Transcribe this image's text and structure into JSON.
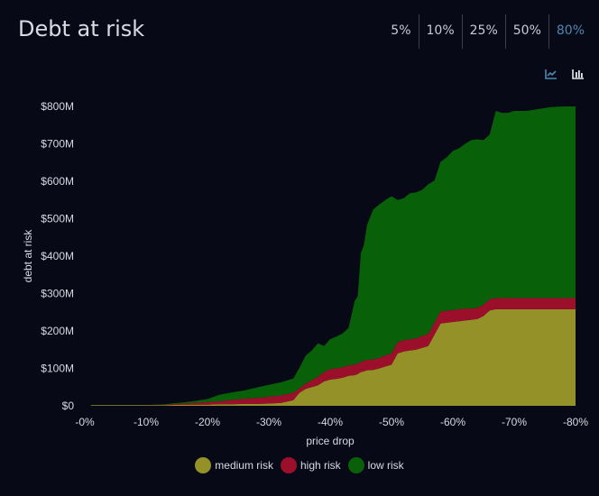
{
  "header": {
    "title": "Debt at risk"
  },
  "tabs": [
    {
      "label": "5%",
      "active": false
    },
    {
      "label": "10%",
      "active": false
    },
    {
      "label": "25%",
      "active": false
    },
    {
      "label": "50%",
      "active": false
    },
    {
      "label": "80%",
      "active": true
    }
  ],
  "toolbar": {
    "icons": [
      "line-chart-icon",
      "bar-chart-icon"
    ]
  },
  "colors": {
    "background": "#070a16",
    "accent": "#4f86b0",
    "medium": "#949128",
    "high": "#9c0f2a",
    "low": "#086008"
  },
  "chart_data": {
    "type": "area",
    "stacked": true,
    "xlabel": "price drop",
    "ylabel": "debt at risk",
    "xlim": [
      0,
      -80
    ],
    "ylim": [
      0,
      800
    ],
    "x_ticks": [
      "-0%",
      "-10%",
      "-20%",
      "-30%",
      "-40%",
      "-50%",
      "-60%",
      "-70%",
      "-80%"
    ],
    "y_ticks": [
      "$0",
      "$100M",
      "$200M",
      "$300M",
      "$400M",
      "$500M",
      "$600M",
      "$700M",
      "$800M"
    ],
    "legend_position": "bottom",
    "x": [
      -1,
      -5,
      -10,
      -13,
      -16,
      -18,
      -20,
      -22,
      -24,
      -26,
      -28,
      -30,
      -32,
      -34,
      -35,
      -36,
      -37,
      -38,
      -39,
      -40,
      -41,
      -42,
      -43,
      -44,
      -44.5,
      -45,
      -45.5,
      -46,
      -47,
      -48,
      -49,
      -50,
      -51,
      -52,
      -53,
      -54,
      -55,
      -56,
      -57,
      -58,
      -59,
      -60,
      -61,
      -62,
      -63,
      -64,
      -65,
      -66,
      -67,
      -68,
      -69,
      -70,
      -72,
      -74,
      -76,
      -78,
      -80
    ],
    "series": [
      {
        "name": "medium risk",
        "values": [
          2,
          2,
          2,
          2,
          3,
          3,
          3,
          4,
          4,
          5,
          5,
          6,
          8,
          15,
          35,
          45,
          50,
          55,
          65,
          70,
          72,
          75,
          80,
          82,
          85,
          90,
          92,
          95,
          96,
          100,
          105,
          110,
          140,
          145,
          148,
          150,
          155,
          160,
          190,
          220,
          222,
          224,
          226,
          228,
          230,
          232,
          240,
          255,
          258,
          258,
          258,
          258,
          258,
          258,
          258,
          258,
          258
        ]
      },
      {
        "name": "high risk",
        "values": [
          0,
          0,
          0,
          1,
          3,
          5,
          7,
          8,
          12,
          14,
          16,
          18,
          20,
          20,
          12,
          14,
          18,
          22,
          25,
          28,
          28,
          28,
          28,
          28,
          28,
          28,
          28,
          28,
          28,
          28,
          30,
          30,
          30,
          30,
          30,
          30,
          32,
          32,
          32,
          32,
          32,
          32,
          32,
          32,
          30,
          30,
          30,
          30,
          30,
          30,
          30,
          30,
          30,
          30,
          30,
          30,
          30
        ]
      },
      {
        "name": "low risk",
        "values": [
          0,
          0,
          0,
          1,
          3,
          5,
          8,
          18,
          20,
          22,
          28,
          32,
          35,
          38,
          55,
          75,
          80,
          90,
          70,
          80,
          85,
          90,
          100,
          170,
          180,
          290,
          310,
          360,
          400,
          410,
          415,
          420,
          380,
          380,
          390,
          390,
          390,
          400,
          380,
          400,
          410,
          425,
          430,
          440,
          450,
          450,
          440,
          440,
          500,
          495,
          495,
          500,
          500,
          505,
          510,
          512,
          512
        ]
      }
    ]
  }
}
